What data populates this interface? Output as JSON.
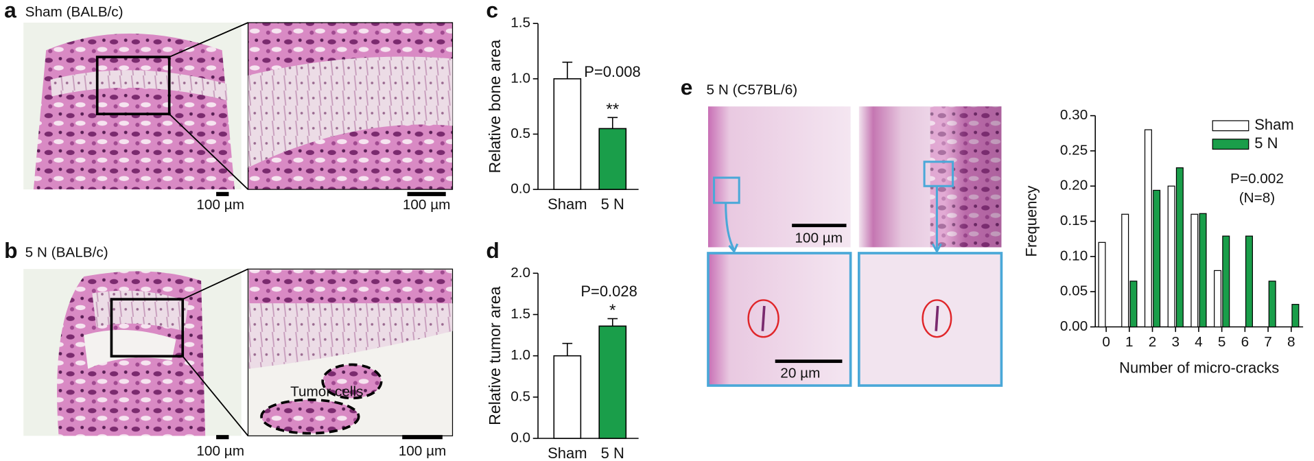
{
  "figure": {
    "panels": [
      {
        "label": "a",
        "caption": "Sham (BALB/c)",
        "scale_bars": [
          "100 µm",
          "100 µm"
        ]
      },
      {
        "label": "b",
        "caption": "5 N (BALB/c)",
        "scale_bars": [
          "100 µm",
          "100 µm"
        ],
        "annotation": "Tumor cells"
      },
      {
        "label": "e",
        "caption": "5 N (C57BL/6)",
        "scale_bars": [
          "100 µm",
          "20 µm"
        ]
      }
    ]
  },
  "chart_data": [
    {
      "type": "bar",
      "panel": "c",
      "ylabel": "Relative bone area",
      "categories": [
        "Sham",
        "5 N"
      ],
      "values": [
        1.0,
        0.55
      ],
      "errors": [
        0.15,
        0.1
      ],
      "colors": [
        "#ffffff",
        "#1a9e4a"
      ],
      "significance": [
        null,
        "**"
      ],
      "annotation": "P=0.008",
      "ylim": [
        0,
        1.5
      ],
      "yticks": [
        {
          "value": 0,
          "label": "0.0"
        },
        0.5,
        {
          "value": 1,
          "label": "1.0"
        },
        1.5
      ]
    },
    {
      "type": "bar",
      "panel": "d",
      "ylabel": "Relative tumor area",
      "categories": [
        "Sham",
        "5 N"
      ],
      "values": [
        1.0,
        1.36
      ],
      "errors": [
        0.15,
        0.09
      ],
      "colors": [
        "#ffffff",
        "#1a9e4a"
      ],
      "significance": [
        null,
        "*"
      ],
      "annotation": "P=0.028",
      "ylim": [
        0,
        2
      ],
      "yticks": [
        {
          "value": 0,
          "label": "0.0"
        },
        0.5,
        {
          "value": 1,
          "label": "1.0"
        },
        1.5,
        {
          "value": 2,
          "label": "2.0"
        }
      ]
    },
    {
      "type": "grouped_bar",
      "xlabel": "Number of micro-cracks",
      "ylabel": "Frequency",
      "categories": [
        "0",
        "1",
        "2",
        "3",
        "4",
        "5",
        "6",
        "7",
        "8"
      ],
      "series": [
        {
          "name": "Sham",
          "color": "#ffffff",
          "values": [
            0.12,
            0.16,
            0.28,
            0.2,
            0.16,
            0.08,
            0,
            0,
            0
          ]
        },
        {
          "name": "5 N",
          "color": "#1a9e4a",
          "values": [
            0,
            0.065,
            0.194,
            0.226,
            0.161,
            0.129,
            0.129,
            0.065,
            0.032
          ]
        }
      ],
      "annotations": [
        "P=0.002",
        "(N=8)"
      ],
      "legend": "upper right",
      "ylim": [
        0,
        0.3
      ],
      "yticks": [
        {
          "value": 0,
          "label": "0.00"
        },
        {
          "value": 0.05,
          "label": "0.05"
        },
        {
          "value": 0.1,
          "label": "0.10"
        },
        {
          "value": 0.15,
          "label": "0.15"
        },
        {
          "value": 0.2,
          "label": "0.20"
        },
        {
          "value": 0.25,
          "label": "0.25"
        },
        {
          "value": 0.3,
          "label": "0.30"
        }
      ]
    }
  ]
}
